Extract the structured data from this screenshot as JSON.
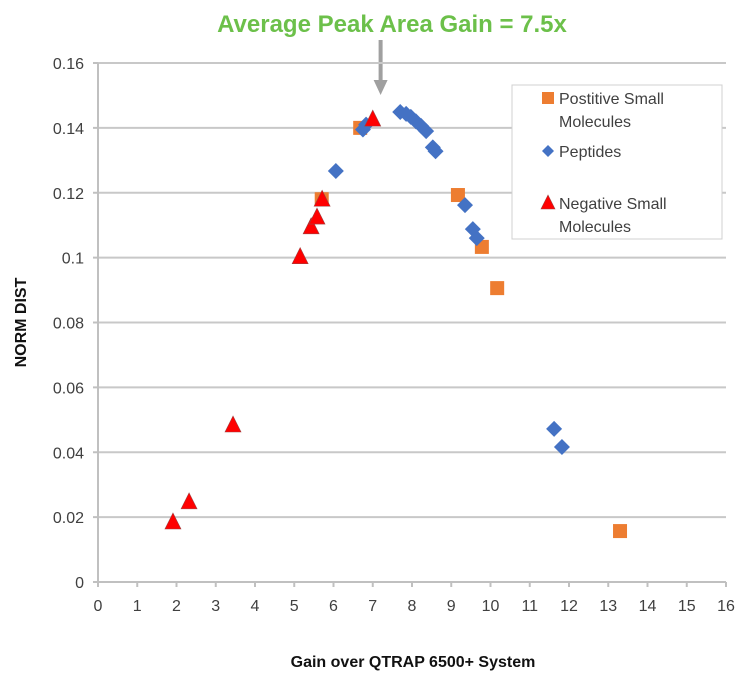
{
  "chart_data": {
    "type": "scatter",
    "title": "Average Peak Area Gain = 7.5x",
    "title_color": "#6CC04A",
    "annotation": {
      "text": "Average Peak Area Gain = 7.5x",
      "arrow_x": 7.2,
      "color": "#A0A0A0"
    },
    "xlabel": "Gain over QTRAP 6500+ System",
    "ylabel": "NORM DIST",
    "xlim": [
      0,
      16
    ],
    "ylim": [
      0,
      0.16
    ],
    "xticks": [
      "0",
      "1",
      "2",
      "3",
      "4",
      "5",
      "6",
      "7",
      "8",
      "9",
      "10",
      "11",
      "12",
      "13",
      "14",
      "15",
      "16"
    ],
    "yticks": [
      "0",
      "0.02",
      "0.04",
      "0.06",
      "0.08",
      "0.1",
      "0.12",
      "0.14",
      "0.16"
    ],
    "grid": "horizontal",
    "legend_position": "top-right",
    "series": [
      {
        "name": "Postitive Small Molecules",
        "legend_lines": [
          "Postitive Small",
          "Molecules"
        ],
        "marker": "square",
        "color": "#ED7D31",
        "points": [
          [
            5.7,
            0.118
          ],
          [
            6.68,
            0.14
          ],
          [
            9.17,
            0.1193
          ],
          [
            9.78,
            0.1033
          ],
          [
            10.17,
            0.0906
          ],
          [
            13.3,
            0.0157
          ]
        ]
      },
      {
        "name": "Peptides",
        "legend_lines": [
          "Peptides"
        ],
        "marker": "diamond",
        "color": "#4472C4",
        "points": [
          [
            6.06,
            0.1267
          ],
          [
            6.75,
            0.1395
          ],
          [
            6.83,
            0.141
          ],
          [
            7.7,
            0.1449
          ],
          [
            7.85,
            0.1443
          ],
          [
            7.97,
            0.1434
          ],
          [
            8.1,
            0.142
          ],
          [
            8.23,
            0.1406
          ],
          [
            8.36,
            0.139
          ],
          [
            8.53,
            0.134
          ],
          [
            8.6,
            0.1328
          ],
          [
            9.35,
            0.1162
          ],
          [
            9.55,
            0.1088
          ],
          [
            9.65,
            0.106
          ],
          [
            11.62,
            0.0472
          ],
          [
            11.82,
            0.0416
          ]
        ]
      },
      {
        "name": "Negative Small Molecules",
        "legend_lines": [
          "Negative Small",
          "Molecules"
        ],
        "marker": "triangle",
        "color": "#FF0000",
        "points": [
          [
            1.91,
            0.0185
          ],
          [
            2.32,
            0.0247
          ],
          [
            3.44,
            0.0484
          ],
          [
            5.15,
            0.1003
          ],
          [
            5.43,
            0.1095
          ],
          [
            5.58,
            0.1125
          ],
          [
            5.71,
            0.118
          ],
          [
            7.0,
            0.1427
          ]
        ]
      }
    ]
  }
}
